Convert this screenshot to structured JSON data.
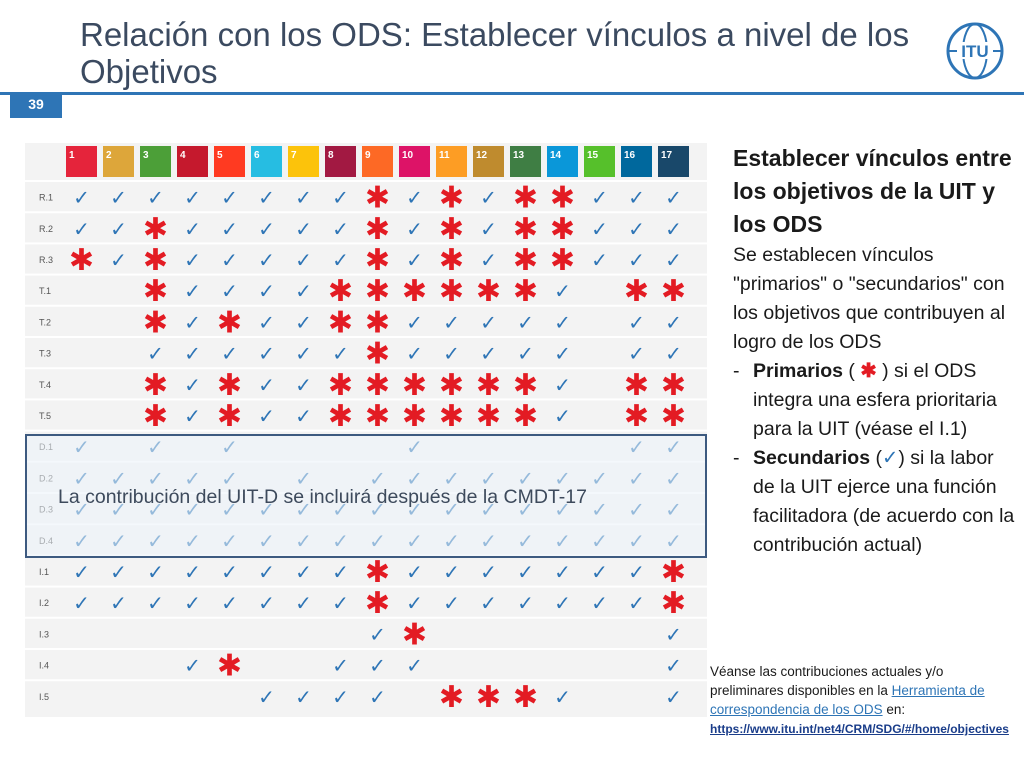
{
  "slide": {
    "title": "Relación con los ODS: Establecer vínculos a nivel de los Objetivos",
    "page_number": "39",
    "logo_text": "ITU"
  },
  "matrix": {
    "column_headers": [
      "1",
      "2",
      "3",
      "4",
      "5",
      "6",
      "7",
      "8",
      "9",
      "10",
      "11",
      "12",
      "13",
      "14",
      "15",
      "16",
      "17"
    ],
    "rows": [
      {
        "label": "R.1",
        "cells": "CCCCCCCCSCSCSSCCC"
      },
      {
        "label": "R.2",
        "cells": "CCSCCCCCSCSCSSCCC"
      },
      {
        "label": "R.3",
        "cells": "SCSCCCCCSCSCSSCCC"
      },
      {
        "label": "T.1",
        "cells": "..SCCCCSSSSSSC.SS"
      },
      {
        "label": "T.2",
        "cells": "..SCSCCSSCCCCC.CC"
      },
      {
        "label": "T.3",
        "cells": "..CCCCCCSCCCCC.CC"
      },
      {
        "label": "T.4",
        "cells": "..SCSCCSSSSSSC.SS"
      },
      {
        "label": "T.5",
        "cells": "..SCSCCSSSSSSC.SS"
      },
      {
        "label": "D.1",
        "cells": "C.C.C....C.....CC"
      },
      {
        "label": "D.2",
        "cells": "CCCCC.C.CCCCCCCCC"
      },
      {
        "label": "D.3",
        "cells": "CCCCCCCCCCCCCCCCC"
      },
      {
        "label": "D.4",
        "cells": "CCCCCCCCCCCCCCCCC"
      },
      {
        "label": "I.1",
        "cells": "CCCCCCCCSCCCCCCCS"
      },
      {
        "label": "I.2",
        "cells": "CCCCCCCCSCCCCCCCS"
      },
      {
        "label": "I.3",
        "cells": "........CS......C"
      },
      {
        "label": "I.4",
        "cells": "...CS..CCC......C"
      },
      {
        "label": "I.5",
        "cells": ".....CCCC.SSSC..C"
      }
    ],
    "legend_symbols": {
      "primary": "✱",
      "secondary": "✓"
    },
    "colors": {
      "primary_mark": "#e31b23",
      "secondary_mark": "#2e75b6",
      "sdg": [
        "#e5243b",
        "#dda63a",
        "#4c9f38",
        "#c5192d",
        "#ff3a21",
        "#26bde2",
        "#fcc30b",
        "#a21942",
        "#fd6925",
        "#dd1367",
        "#fd9d24",
        "#bf8b2e",
        "#3f7e44",
        "#0a97d9",
        "#56c02b",
        "#00689d",
        "#19486a"
      ]
    }
  },
  "overlay_text": "La contribución del UIT-D se incluirá después de la CMDT-17",
  "side": {
    "heading": "Establecer vínculos entre los objetivos de la UIT y los ODS",
    "intro": "Se establecen vínculos \"primarios\" o \"secundarios\" con los objetivos que contribuyen al logro de los ODS",
    "bullet_dash": "-",
    "primary_label": "Primarios",
    "primary_open": " ( ",
    "primary_close": " ) si el ODS integra una esfera prioritaria para la UIT (véase el I.1)",
    "secondary_label": "Secundarios",
    "secondary_open": " (",
    "secondary_close": ") si la labor de la UIT ejerce una función facilitadora (de acuerdo con la contribución actual)"
  },
  "note": {
    "text_before": "Véanse las contribuciones actuales y/o preliminares disponibles en la ",
    "link_label": "Herramienta de correspondencia de los ODS",
    "text_after": " en:",
    "url": "https://www.itu.int/net4/CRM/SDG/#/home/objectives"
  }
}
